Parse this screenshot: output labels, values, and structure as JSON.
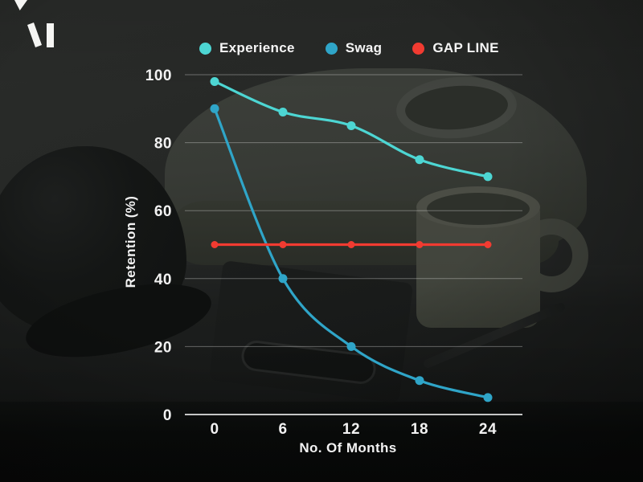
{
  "scene": {
    "background_description": "dark still-life photo of branded swag: black cap, folded sweatshirt, mug, notebook and pen on a table",
    "corner_accent_color": "#F5F5F3",
    "logo_color": "#F5F5F3"
  },
  "legend": {
    "items": [
      {
        "label": "Experience",
        "color": "#4DD6D3"
      },
      {
        "label": "Swag",
        "color": "#2FA5C8"
      },
      {
        "label": "GAP LINE",
        "color": "#F13B31"
      }
    ]
  },
  "chart_data": {
    "type": "line",
    "x": [
      0,
      6,
      12,
      18,
      24
    ],
    "xticks": [
      0,
      6,
      12,
      18,
      24
    ],
    "yticks": [
      0,
      20,
      40,
      60,
      80,
      100
    ],
    "ylim": [
      0,
      100
    ],
    "xlabel": "No. Of Months",
    "ylabel": "Retention (%)",
    "grid": true,
    "legend_position": "top",
    "series": [
      {
        "name": "Experience",
        "color": "#4DD6D3",
        "values": [
          98,
          89,
          85,
          75,
          70
        ],
        "smooth": true
      },
      {
        "name": "Swag",
        "color": "#2FA5C8",
        "values": [
          90,
          40,
          20,
          10,
          5
        ],
        "smooth": true
      },
      {
        "name": "GAP LINE",
        "color": "#F13B31",
        "values": [
          50,
          50,
          50,
          50,
          50
        ],
        "smooth": false
      }
    ],
    "tick_color": "#F2F2F2",
    "gridline_color": "rgba(255,255,255,0.32)",
    "axis_line_color": "rgba(230,230,230,0.85)"
  }
}
